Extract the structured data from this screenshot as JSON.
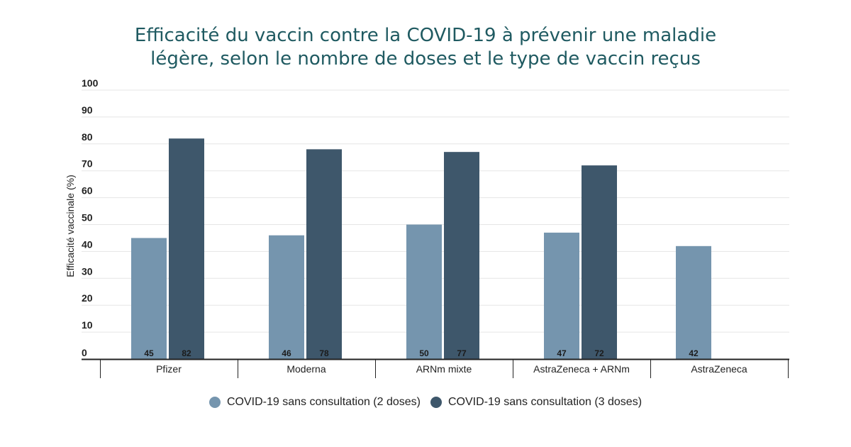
{
  "title_lines": [
    "Efficacité du vaccin contre la COVID-19 à prévenir une maladie",
    "légère, selon le nombre de doses et le type de vaccin reçus"
  ],
  "colors": {
    "series_2_doses": "#7595ae",
    "series_3_doses": "#3e576b",
    "title": "#1f5a61",
    "grid": "#e5e5e5",
    "axis": "#222222"
  },
  "chart_data": {
    "type": "bar",
    "title": "Efficacité du vaccin contre la COVID-19 à prévenir une maladie légère, selon le nombre de doses et le type de vaccin reçus",
    "xlabel": "",
    "ylabel": "Efficacité vaccinale (%)",
    "ylim": [
      0,
      100
    ],
    "yticks": [
      0,
      10,
      20,
      30,
      40,
      50,
      60,
      70,
      80,
      90,
      100
    ],
    "grid": true,
    "legend_position": "bottom",
    "categories": [
      "Pfizer",
      "Moderna",
      "ARNm mixte",
      "AstraZeneca + ARNm",
      "AstraZeneca"
    ],
    "series": [
      {
        "name": "COVID-19 sans consultation (2 doses)",
        "values": [
          45,
          46,
          50,
          47,
          42
        ]
      },
      {
        "name": "COVID-19 sans consultation (3 doses)",
        "values": [
          82,
          78,
          77,
          72,
          null
        ]
      }
    ]
  }
}
